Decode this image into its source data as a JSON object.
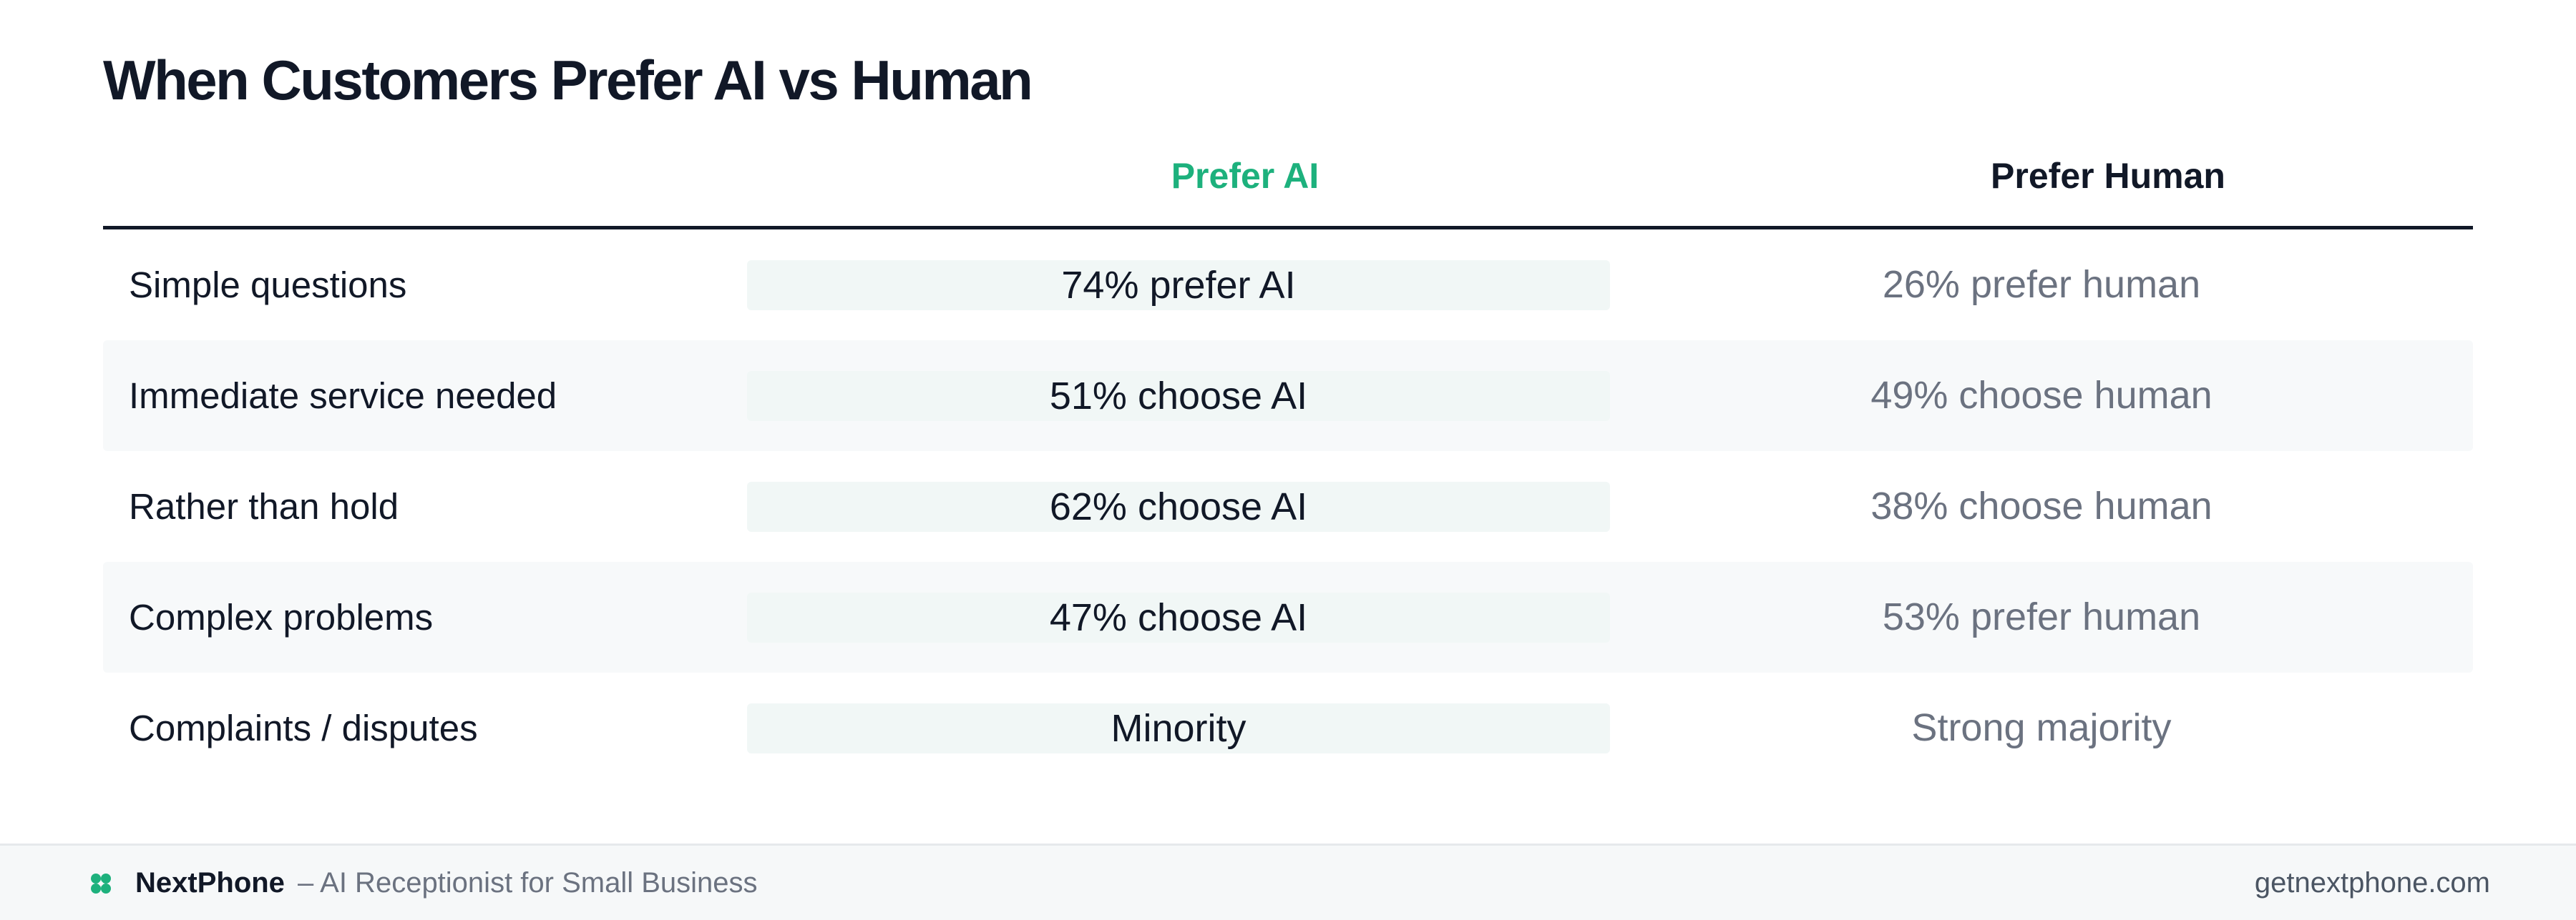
{
  "title": "When Customers Prefer AI vs Human",
  "columns": {
    "ai": "Prefer AI",
    "human": "Prefer Human"
  },
  "rows": [
    {
      "label": "Simple questions",
      "ai": "74% prefer AI",
      "human": "26% prefer human"
    },
    {
      "label": "Immediate service needed",
      "ai": "51% choose AI",
      "human": "49% choose human"
    },
    {
      "label": "Rather than hold",
      "ai": "62% choose AI",
      "human": "38% choose human"
    },
    {
      "label": "Complex problems",
      "ai": "47% choose AI",
      "human": "53% prefer human"
    },
    {
      "label": "Complaints / disputes",
      "ai": "Minority",
      "human": "Strong majority"
    }
  ],
  "footer": {
    "brand": "NextPhone",
    "tagline": "– AI Receptionist for Small Business",
    "url": "getnextphone.com",
    "icon": "clover-logo-icon"
  },
  "colors": {
    "accent": "#1db17d",
    "text": "#111827",
    "muted": "#6b7280",
    "row_shade": "#f7f9fa",
    "ai_cell_bg": "#f1f7f6"
  }
}
